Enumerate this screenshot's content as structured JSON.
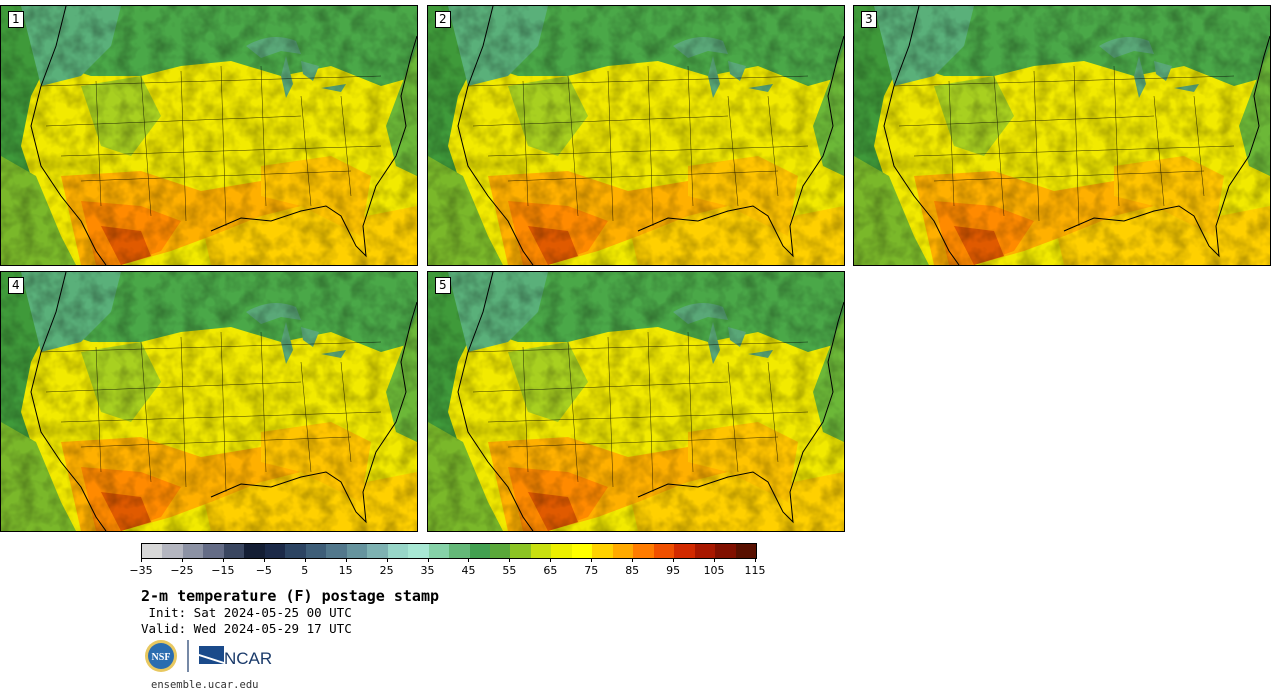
{
  "panels": [
    {
      "label": "1"
    },
    {
      "label": "2"
    },
    {
      "label": "3"
    },
    {
      "label": "4"
    },
    {
      "label": "5"
    }
  ],
  "colorbar": {
    "colors": [
      "#d8d8d8",
      "#b4b6c0",
      "#8c92a4",
      "#646c86",
      "#3a4660",
      "#141e34",
      "#1c2a48",
      "#2c4462",
      "#3e5e78",
      "#52788c",
      "#66949e",
      "#7eb2b2",
      "#98d6c8",
      "#a8e8d4",
      "#86d2a8",
      "#64b878",
      "#42a050",
      "#5aa83a",
      "#8cc424",
      "#c8e010",
      "#ecf000",
      "#ffff00",
      "#ffd200",
      "#ffaa00",
      "#ff7c00",
      "#f05000",
      "#d22a00",
      "#a81800",
      "#801000",
      "#581000"
    ],
    "tick_labels": [
      "−35",
      "−25",
      "−15",
      "−5",
      "5",
      "15",
      "25",
      "35",
      "45",
      "55",
      "65",
      "75",
      "85",
      "95",
      "105",
      "115"
    ],
    "tick_positions": [
      "0",
      "20",
      "40",
      "60",
      "80",
      "100",
      "120",
      "140",
      "160",
      "180",
      "200",
      "220",
      "240",
      "260",
      "280",
      "300"
    ]
  },
  "title": "2-m temperature (F) postage stamp",
  "init": " Init: Sat 2024-05-25 00 UTC",
  "valid": "Valid: Wed 2024-05-29 17 UTC",
  "logos": {
    "nsf": "NSF",
    "ncar": "NCAR"
  },
  "url": "ensemble.ucar.edu"
}
